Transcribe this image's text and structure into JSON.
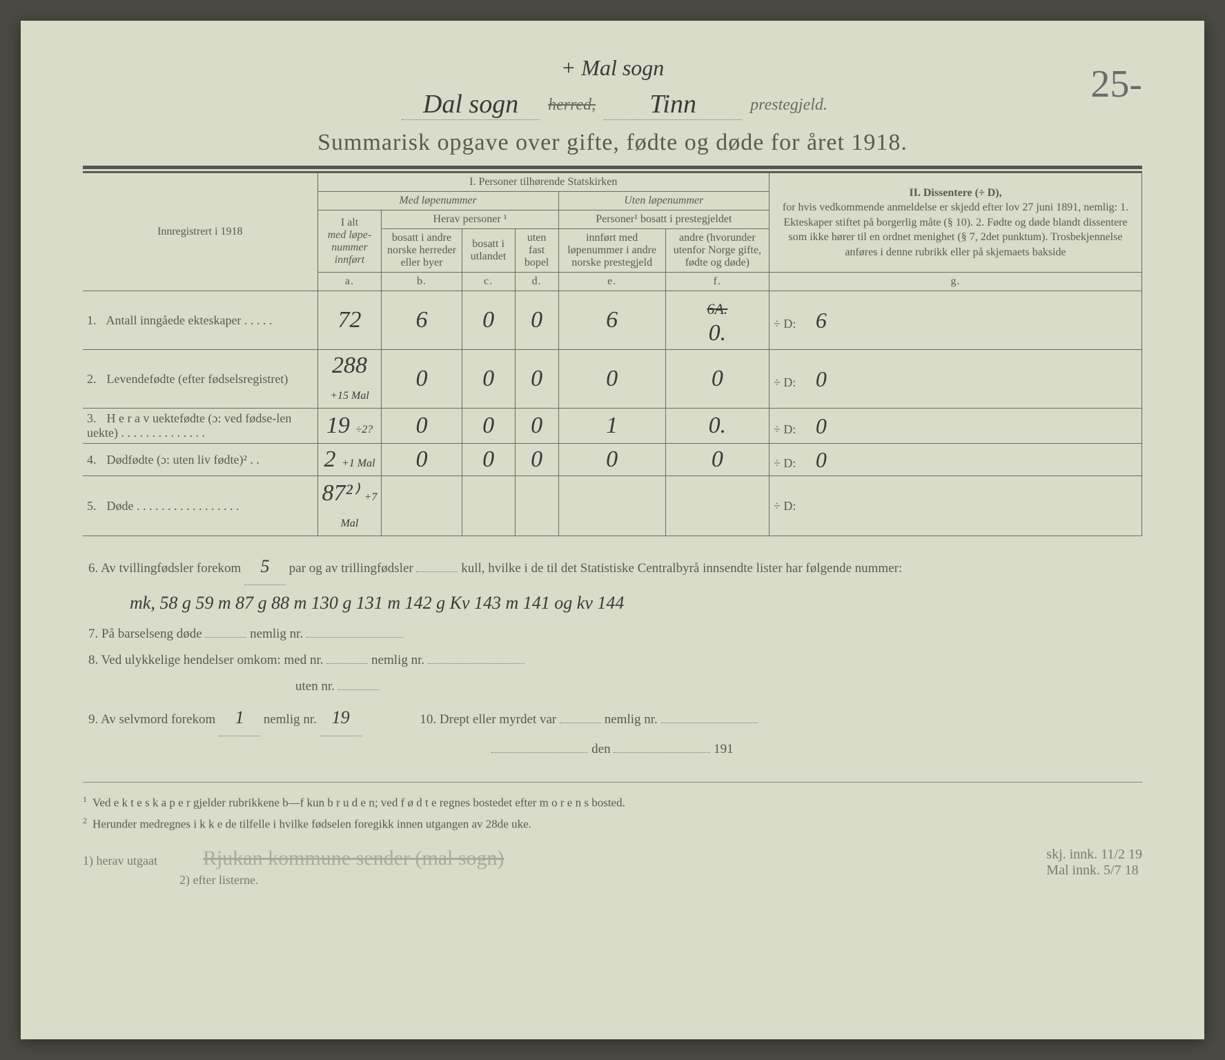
{
  "page_number": "25-",
  "top_annotation": "+ Mal sogn",
  "header": {
    "herred_value": "Dal sogn",
    "herred_label": "herred,",
    "prestegjeld_value": "Tinn",
    "prestegjeld_label": "prestegjeld."
  },
  "title": "Summarisk opgave over gifte, fødte og døde for året 1918.",
  "section_i_title": "I.  Personer tilhørende Statskirken",
  "med_lopenummer": "Med løpenummer",
  "uten_lopenummer": "Uten løpenummer",
  "innreg_label": "Innregistrert i 1918",
  "col_a_top": "I alt",
  "col_a_mid": "med løpe-nummer innført",
  "herav_personer": "Herav personer ¹",
  "col_b": "bosatt i andre norske herreder eller byer",
  "col_c": "bosatt i utlandet",
  "col_d": "uten fast bopel",
  "personer_bosatt": "Personer¹ bosatt i prestegjeldet",
  "col_e": "innført med løpenummer i andre norske prestegjeld",
  "col_f": "andre (hvorunder utenfor Norge gifte, fødte og døde)",
  "sub_labels": {
    "a": "a.",
    "b": "b.",
    "c": "c.",
    "d": "d.",
    "e": "e.",
    "f": "f.",
    "g": "g."
  },
  "section_ii_title": "II.  Dissentere (÷ D),",
  "section_ii_text": "for hvis vedkommende anmeldelse er skjedd efter lov 27 juni 1891, nemlig: 1. Ekteskaper stiftet på borgerlig måte (§ 10). 2. Fødte og døde blandt dissentere som ikke hører til en ordnet menighet (§ 7, 2det punktum). Trosbekjennelse anføres i denne rubrikk eller på skjemaets bakside",
  "rows": [
    {
      "n": "1.",
      "label": "Antall inngåede ekteskaper . . . . .",
      "a": "72",
      "b": "6",
      "c": "0",
      "d": "0",
      "e": "6",
      "f": "0.",
      "f_strike": "6A.",
      "g": "6"
    },
    {
      "n": "2.",
      "label": "Levendefødte (efter fødselsregistret)",
      "a": "288",
      "a_note": "+15 Mal",
      "b": "0",
      "c": "0",
      "d": "0",
      "e": "0",
      "f": "0",
      "g": "0"
    },
    {
      "n": "3.",
      "label": "H e r a v uektefødte (ɔ: ved fødse-len uekte) . . . . . . . . . . . . . .",
      "a": "19",
      "a_note": "÷2?",
      "b": "0",
      "c": "0",
      "d": "0",
      "e": "1",
      "f": "0.",
      "g": "0"
    },
    {
      "n": "4.",
      "label": "Dødfødte (ɔ: uten liv fødte)² . .",
      "a": "2",
      "a_note": "+1 Mal",
      "b": "0",
      "c": "0",
      "d": "0",
      "e": "0",
      "f": "0",
      "g": "0"
    },
    {
      "n": "5.",
      "label": "Døde . . . . . . . . . . . . . . . . .",
      "a": "87²⁾",
      "a_note": "+7 Mal",
      "b": "",
      "c": "",
      "d": "",
      "e": "",
      "f": "",
      "g": ""
    }
  ],
  "d_prefix": "÷ D:",
  "q6_a": "6.  Av tvillingfødsler forekom",
  "q6_val": "5",
  "q6_b": "par og av trillingfødsler",
  "q6_c": "kull, hvilke i de til det Statistiske Centralbyrå innsendte lister har følgende nummer:",
  "q6_hand": "mk, 58 g 59   m 87 g 88   m 130 g 131   m 142 g Kv 143   m 141 og kv 144",
  "q7": "7.  På barselseng døde",
  "q7_b": "nemlig nr.",
  "q8": "8.  Ved ulykkelige hendelser omkom:  med nr.",
  "q8_b": "nemlig nr.",
  "q8_c": "uten nr.",
  "q9": "9.  Av selvmord forekom",
  "q9_val": "1",
  "q9_b": "nemlig nr.",
  "q9_val2": "19",
  "q10": "10.  Drept eller myrdet var",
  "q10_b": "nemlig nr.",
  "date_a": "den",
  "date_b": "191",
  "fn1": "Ved e k t e s k a p e r gjelder rubrikkene b—f kun b r u d e n; ved f ø d t e regnes bostedet efter m o r e n s bosted.",
  "fn2": "Herunder medregnes i k k e de tilfelle i hvilke fødselen foregikk innen utgangen av 28de uke.",
  "bottom_left1": "1) herav utgaat",
  "bottom_left2": "2) efter listerne.",
  "bottom_strike": "Rjukan kommune sender (mal sogn)",
  "bottom_right1": "skj. innk. 11/2 19",
  "bottom_right2": "Mal innk. 5/7 18"
}
